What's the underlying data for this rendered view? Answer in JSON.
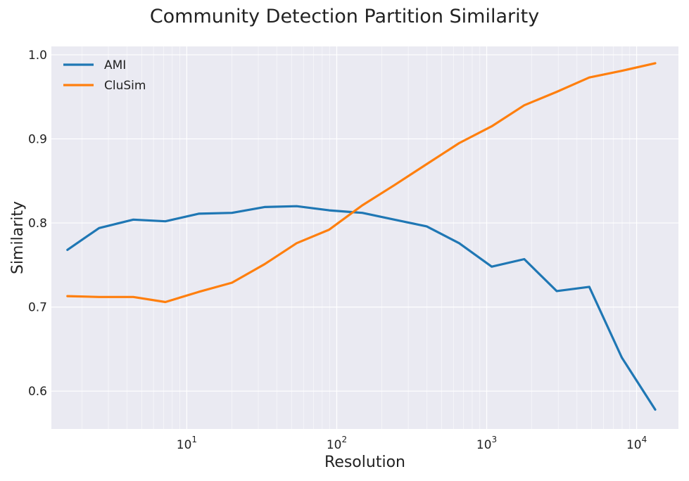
{
  "chart_data": {
    "type": "line",
    "title": "Community Detection Partition Similarity",
    "xlabel": "Resolution",
    "ylabel": "Similarity",
    "xscale": "log",
    "xlim": [
      1.25,
      19000
    ],
    "ylim": [
      0.555,
      1.01
    ],
    "yticks": [
      0.6,
      0.7,
      0.8,
      0.9,
      1.0
    ],
    "ytick_labels": [
      "0.6",
      "0.7",
      "0.8",
      "0.9",
      "1.0"
    ],
    "xticks": [
      10,
      100,
      1000,
      10000
    ],
    "xtick_labels": [
      {
        "base": "10",
        "exp": "1"
      },
      {
        "base": "10",
        "exp": "2"
      },
      {
        "base": "10",
        "exp": "3"
      },
      {
        "base": "10",
        "exp": "4"
      }
    ],
    "grid": true,
    "legend_position": "top-left",
    "x": [
      1.6,
      2.6,
      4.4,
      7.2,
      12,
      20,
      33,
      54,
      89,
      148,
      242,
      398,
      655,
      1080,
      1780,
      2930,
      4830,
      7960,
      13300
    ],
    "series": [
      {
        "name": "AMI",
        "color": "#1f77b4",
        "values": [
          0.768,
          0.794,
          0.804,
          0.802,
          0.811,
          0.812,
          0.819,
          0.82,
          0.815,
          0.812,
          0.804,
          0.796,
          0.776,
          0.748,
          0.757,
          0.719,
          0.724,
          0.64,
          0.578
        ]
      },
      {
        "name": "CluSim",
        "color": "#ff7f0e",
        "values": [
          0.713,
          0.712,
          0.712,
          0.706,
          0.718,
          0.729,
          0.751,
          0.776,
          0.792,
          0.821,
          0.845,
          0.87,
          0.895,
          0.915,
          0.94,
          0.956,
          0.973,
          0.981,
          0.99
        ]
      }
    ]
  },
  "colors": {
    "plot_background": "#eaeaf2",
    "grid": "#ffffff"
  }
}
